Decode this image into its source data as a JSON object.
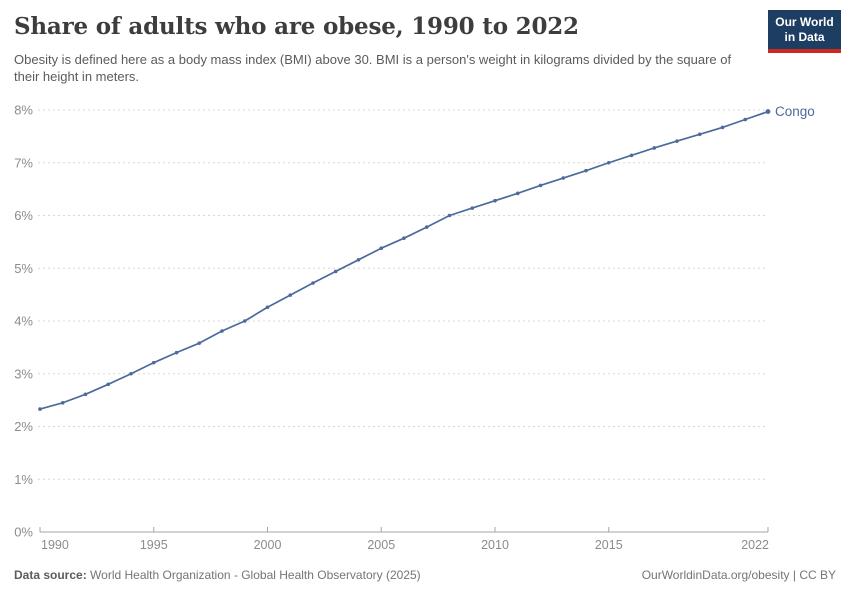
{
  "header": {
    "title": "Share of adults who are obese, 1990 to 2022",
    "subtitle": "Obesity is defined here as a body mass index (BMI) above 30. BMI is a person's weight in kilograms divided by the square of their height in meters.",
    "logo": {
      "line1": "Our World",
      "line2": "in Data",
      "bg_color": "#1d3d63",
      "bar_color": "#cc2a1e"
    }
  },
  "chart_data": {
    "type": "line",
    "title": "Share of adults who are obese, 1990 to 2022",
    "xlabel": "",
    "ylabel": "",
    "xlim": [
      1990,
      2022
    ],
    "ylim": [
      0,
      8
    ],
    "grid": "horizontal-dashed",
    "legend_position": "end-of-line",
    "colors": {
      "series": "#4C6A9C",
      "grid": "#d7d7d7",
      "axis": "#a5a5a5",
      "tick_label": "#8c8c8c"
    },
    "x": [
      1990,
      1991,
      1992,
      1993,
      1994,
      1995,
      1996,
      1997,
      1998,
      1999,
      2000,
      2001,
      2002,
      2003,
      2004,
      2005,
      2006,
      2007,
      2008,
      2009,
      2010,
      2011,
      2012,
      2013,
      2014,
      2015,
      2016,
      2017,
      2018,
      2019,
      2020,
      2021,
      2022
    ],
    "series": [
      {
        "name": "Congo",
        "values": [
          2.33,
          2.45,
          2.61,
          2.8,
          3.0,
          3.21,
          3.4,
          3.58,
          3.81,
          4.0,
          4.26,
          4.49,
          4.72,
          4.94,
          5.16,
          5.38,
          5.57,
          5.78,
          6.0,
          6.14,
          6.28,
          6.42,
          6.57,
          6.71,
          6.85,
          7.0,
          7.14,
          7.28,
          7.41,
          7.54,
          7.67,
          7.82,
          7.97
        ]
      }
    ],
    "y_ticks": [
      {
        "value": 0,
        "label": "0%"
      },
      {
        "value": 1,
        "label": "1%"
      },
      {
        "value": 2,
        "label": "2%"
      },
      {
        "value": 3,
        "label": "3%"
      },
      {
        "value": 4,
        "label": "4%"
      },
      {
        "value": 5,
        "label": "5%"
      },
      {
        "value": 6,
        "label": "6%"
      },
      {
        "value": 7,
        "label": "7%"
      },
      {
        "value": 8,
        "label": "8%"
      }
    ],
    "x_ticks": [
      {
        "value": 1990,
        "label": "1990"
      },
      {
        "value": 1995,
        "label": "1995"
      },
      {
        "value": 2000,
        "label": "2000"
      },
      {
        "value": 2005,
        "label": "2005"
      },
      {
        "value": 2010,
        "label": "2010"
      },
      {
        "value": 2015,
        "label": "2015"
      },
      {
        "value": 2022,
        "label": "2022"
      }
    ]
  },
  "footer": {
    "source_label": "Data source:",
    "source_text": " World Health Organization - Global Health Observatory (2025)",
    "right_text": "OurWorldinData.org/obesity | CC BY"
  }
}
